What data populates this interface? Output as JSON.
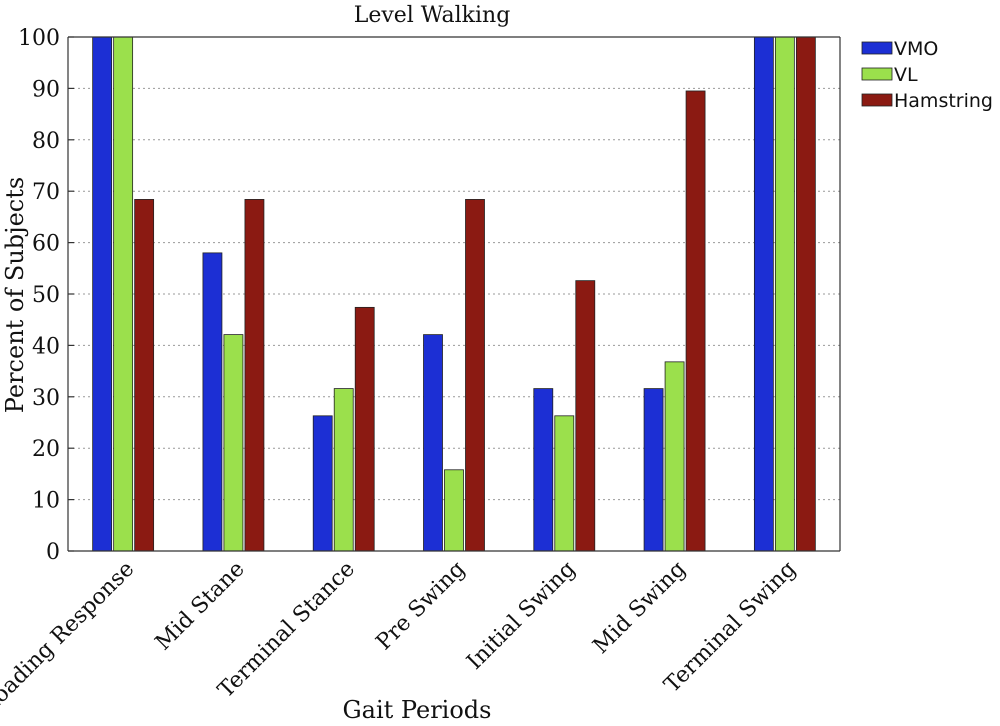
{
  "chart_data": {
    "type": "bar",
    "title": "Level Walking",
    "xlabel": "Gait Periods",
    "ylabel": "Percent of Subjects",
    "ylim": [
      0,
      100
    ],
    "yticks": [
      0,
      10,
      20,
      30,
      40,
      50,
      60,
      70,
      80,
      90,
      100
    ],
    "grid": "horizontal-dotted",
    "legend_position": "top-right",
    "categories": [
      "Loading Response",
      "Mid Stane",
      "Terminal Stance",
      "Pre Swing",
      "Initial Swing",
      "Mid Swing",
      "Terminal Swing"
    ],
    "series": [
      {
        "name": "VMO",
        "color": "#1c2fd4",
        "values": [
          100,
          58,
          26.3,
          42.1,
          31.6,
          31.6,
          100
        ]
      },
      {
        "name": "VL",
        "color": "#9be04c",
        "values": [
          100,
          42.1,
          31.6,
          15.8,
          26.3,
          36.8,
          100
        ]
      },
      {
        "name": "Hamstring",
        "color": "#8b1a12",
        "values": [
          68.4,
          68.4,
          47.4,
          68.4,
          52.6,
          89.5,
          100
        ]
      }
    ]
  }
}
